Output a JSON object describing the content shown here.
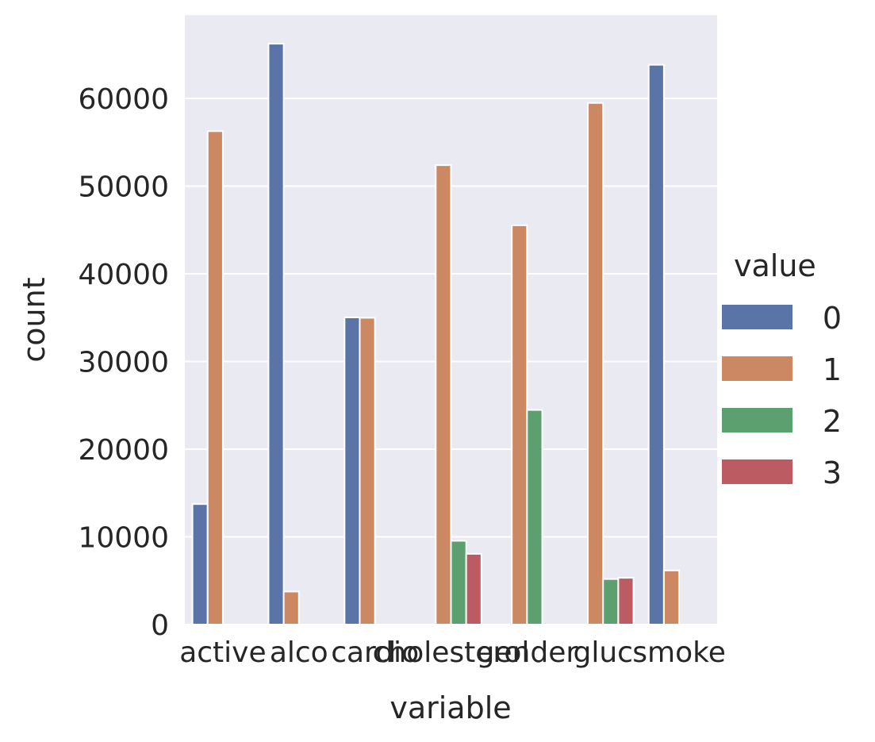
{
  "chart_data": {
    "type": "bar",
    "title": "",
    "xlabel": "variable",
    "ylabel": "count",
    "categories": [
      "active",
      "alco",
      "cardio",
      "cholesterol",
      "gender",
      "gluc",
      "smoke"
    ],
    "series": [
      {
        "name": "0",
        "color": "#5a74a8",
        "values": [
          13739,
          66236,
          35021,
          null,
          null,
          null,
          63831
        ]
      },
      {
        "name": "1",
        "color": "#cc8763",
        "values": [
          56261,
          3764,
          34979,
          52385,
          45530,
          59479,
          6169
        ]
      },
      {
        "name": "2",
        "color": "#5da06f",
        "values": [
          null,
          null,
          null,
          9549,
          24470,
          5190,
          null
        ]
      },
      {
        "name": "3",
        "color": "#bc5c62",
        "values": [
          null,
          null,
          null,
          8066,
          null,
          5331,
          null
        ]
      }
    ],
    "ylim": [
      0,
      69500
    ],
    "yticks": [
      0,
      10000,
      20000,
      30000,
      40000,
      50000,
      60000
    ],
    "grid": true,
    "legend": {
      "title": "value",
      "position": "right"
    },
    "plot_background": "#eaeaf2"
  }
}
